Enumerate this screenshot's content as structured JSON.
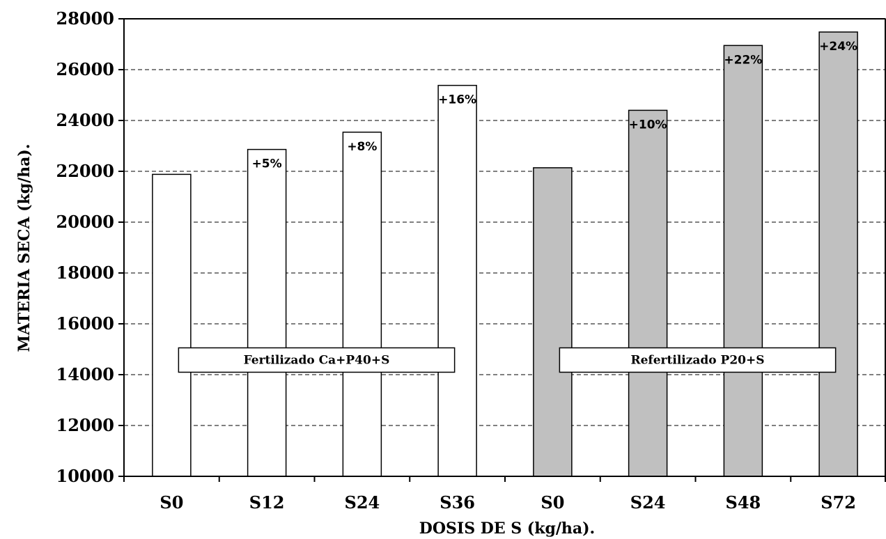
{
  "chart_data": {
    "type": "bar",
    "title": "",
    "xlabel": "DOSIS DE S (kg/ha).",
    "ylabel": "MATERIA SECA (kg/ha).",
    "ylim": [
      10000,
      28000
    ],
    "y_ticks": [
      10000,
      12000,
      14000,
      16000,
      18000,
      20000,
      22000,
      24000,
      26000,
      28000
    ],
    "grid": "horizontal-dashed",
    "categories": [
      "S0",
      "S12",
      "S24",
      "S36",
      "S0",
      "S24",
      "S48",
      "S72"
    ],
    "values": [
      21880,
      22860,
      23540,
      25380,
      22140,
      24400,
      26950,
      27480
    ],
    "bar_labels": [
      "",
      "+5%",
      "+8%",
      "+16%",
      "",
      "+10%",
      "+22%",
      "+24%"
    ],
    "bar_colors": [
      "#ffffff",
      "#ffffff",
      "#ffffff",
      "#ffffff",
      "#c0c0c0",
      "#c0c0c0",
      "#c0c0c0",
      "#c0c0c0"
    ],
    "groups": [
      {
        "label": "Fertilizado Ca+P40+S",
        "first": 0,
        "last": 3,
        "color": "#ffffff"
      },
      {
        "label": "Refertilizado P20+S",
        "first": 4,
        "last": 7,
        "color": "#c0c0c0"
      }
    ]
  }
}
